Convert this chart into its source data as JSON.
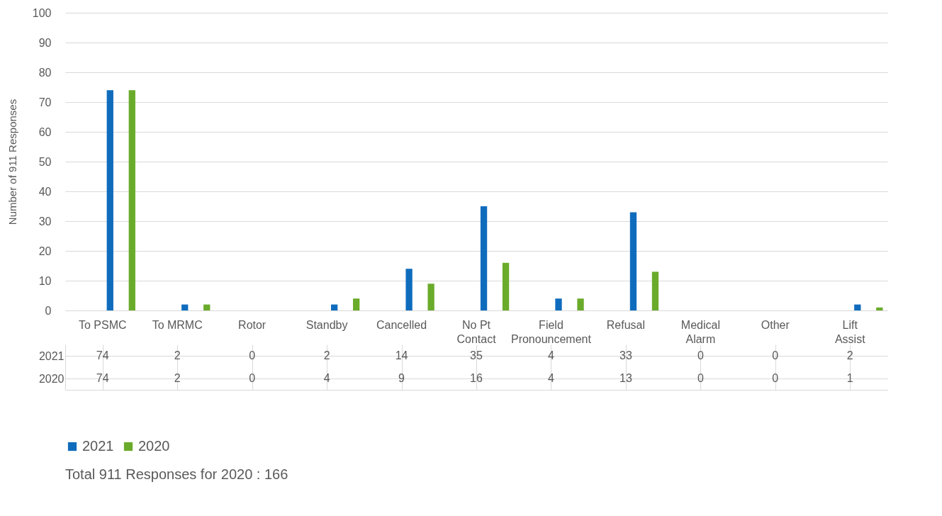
{
  "chart_data": {
    "type": "bar",
    "ylabel": "Number of 911 Responses",
    "categories": [
      "To PSMC",
      "To MRMC",
      "Rotor",
      "Standby",
      "Cancelled",
      "No Pt Contact",
      "Field Pronouncement",
      "Refusal",
      "Medical Alarm",
      "Other",
      "Lift Assist"
    ],
    "series": [
      {
        "name": "2021",
        "color": "#0f6cbd",
        "values": [
          74,
          2,
          0,
          2,
          14,
          35,
          4,
          33,
          0,
          0,
          2
        ]
      },
      {
        "name": "2020",
        "color": "#6aab2b",
        "values": [
          74,
          2,
          0,
          4,
          9,
          16,
          4,
          13,
          0,
          0,
          1
        ]
      }
    ],
    "ylim": [
      0,
      100
    ],
    "yticks": [
      0,
      10,
      20,
      30,
      40,
      50,
      60,
      70,
      80,
      90,
      100
    ],
    "grid": "y",
    "legend": "bottom",
    "data_labels": true,
    "annotations": [
      "Total 911 Responses for 2020 :  166"
    ]
  }
}
